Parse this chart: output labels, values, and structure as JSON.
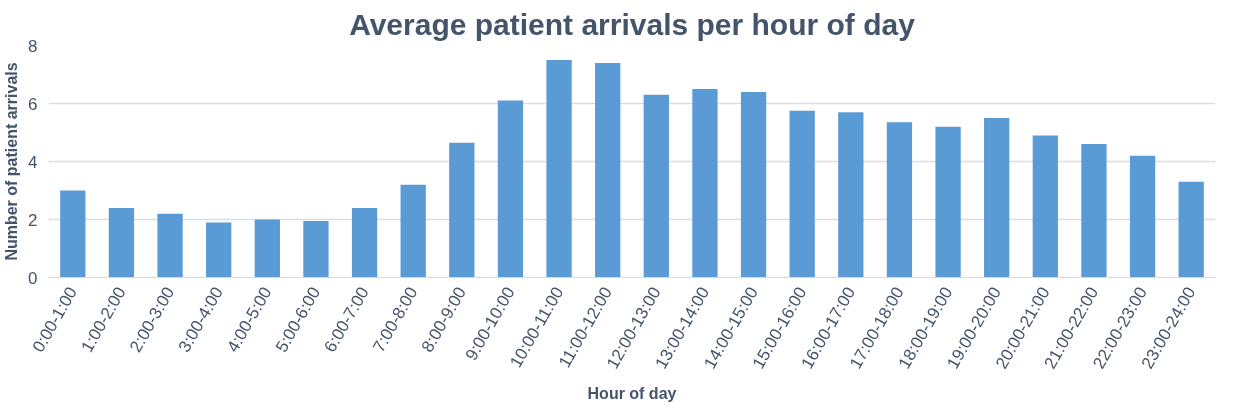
{
  "chart_data": {
    "type": "bar",
    "title": "Average patient arrivals per hour of day",
    "xlabel": "Hour of day",
    "ylabel": "Number of patient arrivals",
    "categories": [
      "0:00-1:00",
      "1:00-2:00",
      "2:00-3:00",
      "3:00-4:00",
      "4:00-5:00",
      "5:00-6:00",
      "6:00-7:00",
      "7:00-8:00",
      "8:00-9:00",
      "9:00-10:00",
      "10:00-11:00",
      "11:00-12:00",
      "12:00-13:00",
      "13:00-14:00",
      "14:00-15:00",
      "15:00-16:00",
      "16:00-17:00",
      "17:00-18:00",
      "18:00-19:00",
      "19:00-20:00",
      "20:00-21:00",
      "21:00-22:00",
      "22:00-23:00",
      "23:00-24:00"
    ],
    "values": [
      3.0,
      2.4,
      2.2,
      1.9,
      2.0,
      1.95,
      2.4,
      3.2,
      4.65,
      6.1,
      7.5,
      7.4,
      6.3,
      6.5,
      6.4,
      5.75,
      5.7,
      5.35,
      5.2,
      5.5,
      4.9,
      4.6,
      4.2,
      3.3
    ],
    "color": "#5b9bd5",
    "ylim": [
      0,
      8
    ],
    "yticks": [
      0,
      2,
      4,
      6,
      8
    ],
    "grid": "y"
  }
}
